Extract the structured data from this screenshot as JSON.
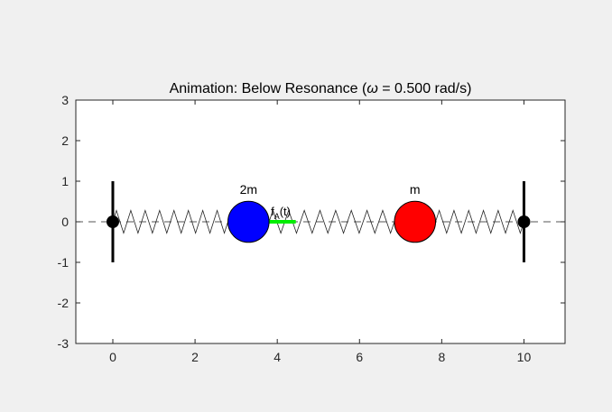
{
  "window": {
    "background": "#f0f0f0"
  },
  "chart_data": {
    "type": "scatter",
    "title_prefix": "Animation: Below Resonance (",
    "title_omega": "ω",
    "title_suffix": " = 0.500 rad/s)",
    "xlabel": "",
    "ylabel": "",
    "xlim": [
      -0.9,
      11.0
    ],
    "ylim": [
      -3,
      3
    ],
    "xticks": [
      0,
      2,
      4,
      6,
      8,
      10
    ],
    "yticks": [
      -3,
      -2,
      -1,
      0,
      1,
      2,
      3
    ],
    "grid": false,
    "walls": [
      {
        "x": 0,
        "y_range": [
          -1,
          1
        ]
      },
      {
        "x": 10,
        "y_range": [
          -1,
          1
        ]
      }
    ],
    "anchors": [
      {
        "x": 0,
        "y": 0
      },
      {
        "x": 10,
        "y": 0
      }
    ],
    "equilibrium_line": {
      "y": 0,
      "style": "dashed"
    },
    "masses": [
      {
        "label": "2m",
        "x": 3.3,
        "y": 0,
        "color": "#0000ff"
      },
      {
        "label": "m",
        "x": 7.35,
        "y": 0,
        "color": "#ff0000"
      }
    ],
    "springs": [
      {
        "from": 0,
        "to": 2.8,
        "coils": 8
      },
      {
        "from": 3.8,
        "to": 6.85,
        "coils": 8
      },
      {
        "from": 7.85,
        "to": 10,
        "coils": 6
      }
    ],
    "force_arrow": {
      "x_start": 3.8,
      "x_end": 4.45,
      "y": 0,
      "color": "#00ee00",
      "label": "f",
      "label_sub": "A",
      "label_arg": "(t)"
    },
    "colors": {
      "axis": "#262626",
      "plot_bg": "#ffffff",
      "spring": "#222222",
      "dash": "#555555"
    }
  }
}
